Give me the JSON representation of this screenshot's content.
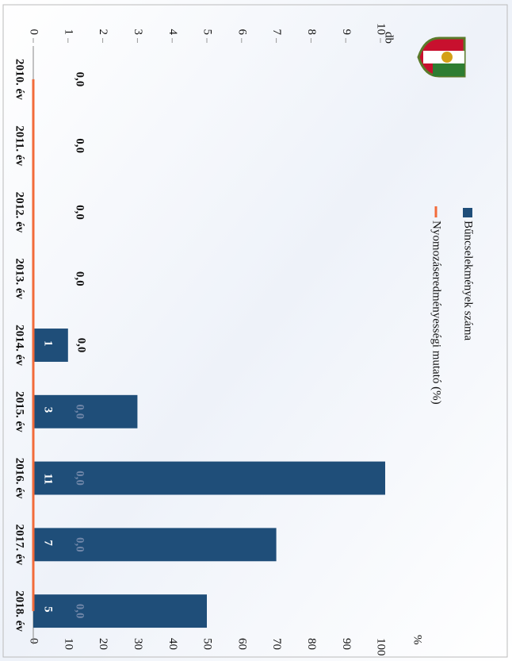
{
  "chart_data": {
    "type": "bar",
    "categories": [
      "2010. év",
      "2011. év",
      "2012. év",
      "2013. év",
      "2014. év",
      "2015. év",
      "2016. év",
      "2017. év",
      "2018. év"
    ],
    "series": [
      {
        "name": "Bűncselekmények száma",
        "color": "#1f4e79",
        "values": [
          null,
          null,
          null,
          null,
          1,
          3,
          11,
          7,
          5
        ]
      },
      {
        "name": "Nyomozáseredményességi mutató (%)",
        "color": "#f26b3a",
        "type": "line",
        "axis": "y2",
        "values": [
          0,
          0,
          0,
          0,
          0,
          0,
          0,
          0,
          0
        ],
        "value_labels": [
          "0,0",
          "0,0",
          "0,0",
          "0,0",
          "0,0",
          "0,0",
          "0,0",
          "0,0",
          "0,0"
        ]
      }
    ],
    "ylim": [
      0,
      10
    ],
    "yticks": [
      0,
      1,
      2,
      3,
      4,
      5,
      6,
      7,
      8,
      9,
      10
    ],
    "y2lim": [
      0,
      100
    ],
    "y2ticks": [
      0,
      10,
      20,
      30,
      40,
      50,
      60,
      70,
      80,
      90,
      100
    ],
    "y_label": "db",
    "y2_label": "%",
    "grid": false
  }
}
